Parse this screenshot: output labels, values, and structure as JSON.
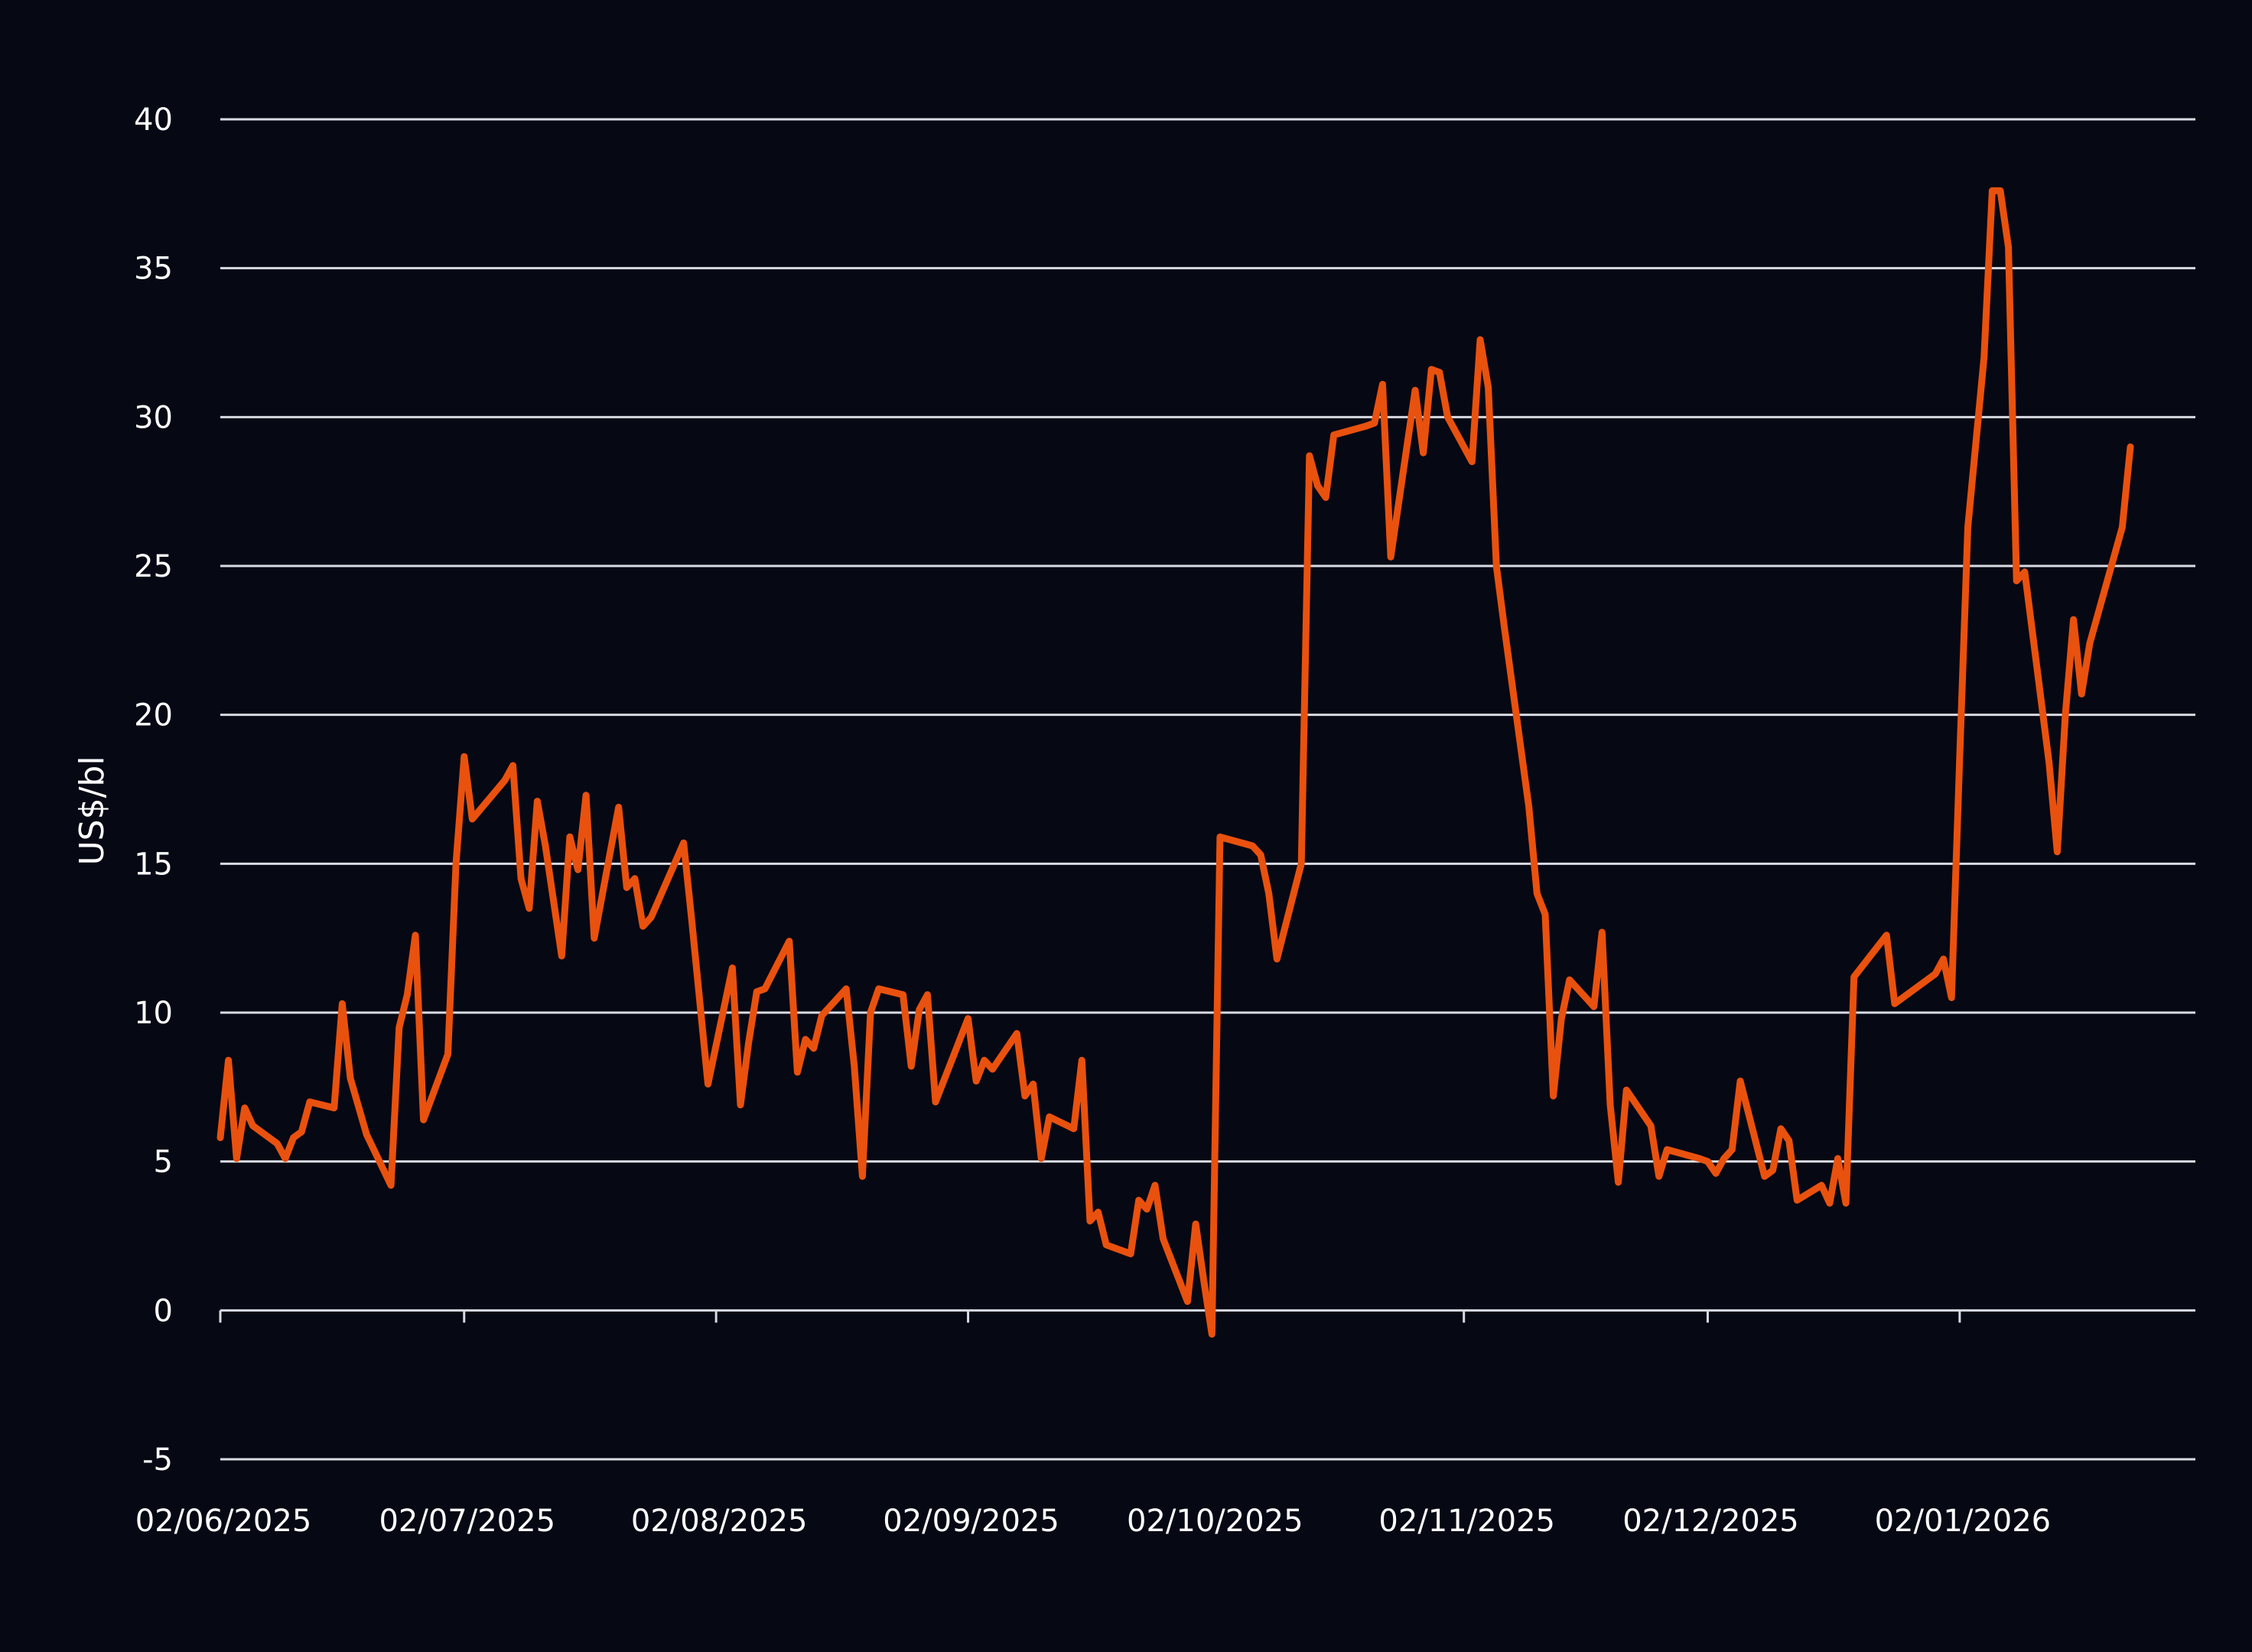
{
  "chart_data": {
    "type": "line",
    "ylabel": "US$/bl",
    "xlabel": "",
    "ylim": [
      -5,
      40
    ],
    "yticks": [
      -5,
      0,
      5,
      10,
      15,
      20,
      25,
      30,
      35,
      40
    ],
    "ytick_labels": [
      "-5",
      "0",
      "5",
      "10",
      "15",
      "20",
      "25",
      "30",
      "35",
      "40"
    ],
    "xlim": [
      "2025-06-02",
      "2026-01-31"
    ],
    "xticks": [
      "2025-06-02",
      "2025-07-02",
      "2025-08-02",
      "2025-09-02",
      "2025-10-02",
      "2025-11-02",
      "2025-12-02",
      "2026-01-02"
    ],
    "xtick_labels": [
      "02/06/2025",
      "02/07/2025",
      "02/08/2025",
      "02/09/2025",
      "02/10/2025",
      "02/11/2025",
      "02/12/2025",
      "02/01/2026"
    ],
    "grid": true,
    "legend": "none",
    "colors": {
      "background": "#060814",
      "line": "#e9510e",
      "grid": "#d9dbe3",
      "text": "#ffffff"
    },
    "series": [
      {
        "points": [
          [
            "2025-06-02",
            5.8
          ],
          [
            "2025-06-03",
            8.4
          ],
          [
            "2025-06-04",
            5.1
          ],
          [
            "2025-06-05",
            6.8
          ],
          [
            "2025-06-06",
            6.2
          ],
          [
            "2025-06-09",
            5.6
          ],
          [
            "2025-06-10",
            5.1
          ],
          [
            "2025-06-11",
            5.8
          ],
          [
            "2025-06-12",
            6.0
          ],
          [
            "2025-06-13",
            7.0
          ],
          [
            "2025-06-16",
            6.8
          ],
          [
            "2025-06-17",
            10.3
          ],
          [
            "2025-06-18",
            7.8
          ],
          [
            "2025-06-20",
            5.9
          ],
          [
            "2025-06-23",
            4.2
          ],
          [
            "2025-06-24",
            9.5
          ],
          [
            "2025-06-25",
            10.6
          ],
          [
            "2025-06-26",
            12.6
          ],
          [
            "2025-06-27",
            6.4
          ],
          [
            "2025-06-30",
            8.6
          ],
          [
            "2025-07-01",
            15.0
          ],
          [
            "2025-07-02",
            18.6
          ],
          [
            "2025-07-03",
            16.5
          ],
          [
            "2025-07-07",
            17.8
          ],
          [
            "2025-07-08",
            18.3
          ],
          [
            "2025-07-09",
            14.5
          ],
          [
            "2025-07-10",
            13.5
          ],
          [
            "2025-07-11",
            17.1
          ],
          [
            "2025-07-12",
            15.6
          ],
          [
            "2025-07-14",
            11.9
          ],
          [
            "2025-07-15",
            15.9
          ],
          [
            "2025-07-16",
            14.8
          ],
          [
            "2025-07-17",
            17.3
          ],
          [
            "2025-07-18",
            12.5
          ],
          [
            "2025-07-21",
            16.9
          ],
          [
            "2025-07-22",
            14.2
          ],
          [
            "2025-07-23",
            14.5
          ],
          [
            "2025-07-24",
            12.9
          ],
          [
            "2025-07-25",
            13.2
          ],
          [
            "2025-07-29",
            15.7
          ],
          [
            "2025-07-30",
            13.1
          ],
          [
            "2025-08-01",
            7.6
          ],
          [
            "2025-08-04",
            11.5
          ],
          [
            "2025-08-05",
            6.9
          ],
          [
            "2025-08-06",
            9.0
          ],
          [
            "2025-08-07",
            10.7
          ],
          [
            "2025-08-08",
            10.8
          ],
          [
            "2025-08-11",
            12.4
          ],
          [
            "2025-08-12",
            8.0
          ],
          [
            "2025-08-13",
            9.1
          ],
          [
            "2025-08-14",
            8.8
          ],
          [
            "2025-08-15",
            9.9
          ],
          [
            "2025-08-18",
            10.8
          ],
          [
            "2025-08-19",
            8.2
          ],
          [
            "2025-08-20",
            4.5
          ],
          [
            "2025-08-21",
            10.0
          ],
          [
            "2025-08-22",
            10.8
          ],
          [
            "2025-08-25",
            10.6
          ],
          [
            "2025-08-26",
            8.2
          ],
          [
            "2025-08-27",
            10.1
          ],
          [
            "2025-08-28",
            10.6
          ],
          [
            "2025-08-29",
            7.0
          ],
          [
            "2025-09-02",
            9.8
          ],
          [
            "2025-09-03",
            7.7
          ],
          [
            "2025-09-04",
            8.4
          ],
          [
            "2025-09-05",
            8.1
          ],
          [
            "2025-09-08",
            9.3
          ],
          [
            "2025-09-09",
            7.2
          ],
          [
            "2025-09-10",
            7.6
          ],
          [
            "2025-09-11",
            5.1
          ],
          [
            "2025-09-12",
            6.5
          ],
          [
            "2025-09-15",
            6.1
          ],
          [
            "2025-09-16",
            8.4
          ],
          [
            "2025-09-17",
            3.0
          ],
          [
            "2025-09-18",
            3.3
          ],
          [
            "2025-09-19",
            2.2
          ],
          [
            "2025-09-22",
            1.9
          ],
          [
            "2025-09-23",
            3.7
          ],
          [
            "2025-09-24",
            3.4
          ],
          [
            "2025-09-25",
            4.2
          ],
          [
            "2025-09-26",
            2.4
          ],
          [
            "2025-09-29",
            0.3
          ],
          [
            "2025-09-30",
            2.9
          ],
          [
            "2025-10-01",
            1.0
          ],
          [
            "2025-10-02",
            -0.8
          ],
          [
            "2025-10-03",
            15.9
          ],
          [
            "2025-10-07",
            15.6
          ],
          [
            "2025-10-08",
            15.3
          ],
          [
            "2025-10-09",
            14.0
          ],
          [
            "2025-10-10",
            11.8
          ],
          [
            "2025-10-13",
            15.0
          ],
          [
            "2025-10-14",
            28.7
          ],
          [
            "2025-10-15",
            27.7
          ],
          [
            "2025-10-16",
            27.3
          ],
          [
            "2025-10-17",
            29.4
          ],
          [
            "2025-10-21",
            29.7
          ],
          [
            "2025-10-22",
            29.8
          ],
          [
            "2025-10-23",
            31.1
          ],
          [
            "2025-10-24",
            25.3
          ],
          [
            "2025-10-27",
            30.9
          ],
          [
            "2025-10-28",
            28.8
          ],
          [
            "2025-10-29",
            31.6
          ],
          [
            "2025-10-30",
            31.5
          ],
          [
            "2025-10-31",
            30.0
          ],
          [
            "2025-11-03",
            28.5
          ],
          [
            "2025-11-04",
            32.6
          ],
          [
            "2025-11-05",
            31.0
          ],
          [
            "2025-11-06",
            25.0
          ],
          [
            "2025-11-07",
            22.9
          ],
          [
            "2025-11-10",
            16.9
          ],
          [
            "2025-11-11",
            14.0
          ],
          [
            "2025-11-12",
            13.3
          ],
          [
            "2025-11-13",
            7.2
          ],
          [
            "2025-11-14",
            9.8
          ],
          [
            "2025-11-15",
            11.1
          ],
          [
            "2025-11-17",
            10.5
          ],
          [
            "2025-11-18",
            10.2
          ],
          [
            "2025-11-19",
            12.7
          ],
          [
            "2025-11-20",
            6.9
          ],
          [
            "2025-11-21",
            4.3
          ],
          [
            "2025-11-22",
            7.4
          ],
          [
            "2025-11-25",
            6.2
          ],
          [
            "2025-11-26",
            4.5
          ],
          [
            "2025-11-27",
            5.4
          ],
          [
            "2025-12-01",
            5.1
          ],
          [
            "2025-12-02",
            5.0
          ],
          [
            "2025-12-03",
            4.6
          ],
          [
            "2025-12-04",
            5.1
          ],
          [
            "2025-12-05",
            5.4
          ],
          [
            "2025-12-06",
            7.7
          ],
          [
            "2025-12-09",
            4.5
          ],
          [
            "2025-12-10",
            4.7
          ],
          [
            "2025-12-11",
            6.1
          ],
          [
            "2025-12-12",
            5.7
          ],
          [
            "2025-12-13",
            3.7
          ],
          [
            "2025-12-16",
            4.2
          ],
          [
            "2025-12-17",
            3.6
          ],
          [
            "2025-12-18",
            5.1
          ],
          [
            "2025-12-19",
            3.6
          ],
          [
            "2025-12-20",
            11.2
          ],
          [
            "2025-12-24",
            12.6
          ],
          [
            "2025-12-25",
            10.3
          ],
          [
            "2025-12-30",
            11.3
          ],
          [
            "2025-12-31",
            11.8
          ],
          [
            "2026-01-01",
            10.5
          ],
          [
            "2026-01-02",
            18.6
          ],
          [
            "2026-01-03",
            26.3
          ],
          [
            "2026-01-05",
            32.0
          ],
          [
            "2026-01-06",
            37.6
          ],
          [
            "2026-01-07",
            37.6
          ],
          [
            "2026-01-08",
            35.7
          ],
          [
            "2026-01-09",
            24.5
          ],
          [
            "2026-01-10",
            24.8
          ],
          [
            "2026-01-13",
            18.4
          ],
          [
            "2026-01-14",
            15.4
          ],
          [
            "2026-01-15",
            20.0
          ],
          [
            "2026-01-16",
            23.2
          ],
          [
            "2026-01-17",
            20.7
          ],
          [
            "2026-01-18",
            22.4
          ],
          [
            "2026-01-22",
            26.3
          ],
          [
            "2026-01-23",
            29.0
          ]
        ]
      }
    ]
  }
}
